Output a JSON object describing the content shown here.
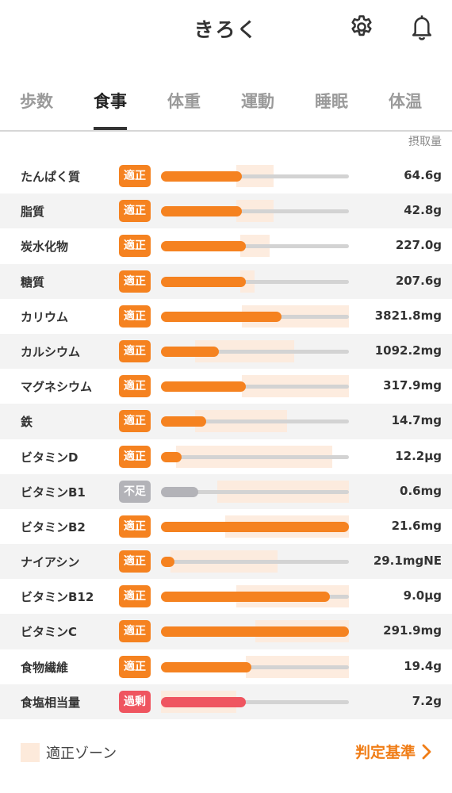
{
  "header": {
    "title": "きろく",
    "settings_icon": "gear-icon",
    "notification_icon": "bell-icon"
  },
  "tabs": [
    {
      "label": "歩数",
      "active": false
    },
    {
      "label": "食事",
      "active": true
    },
    {
      "label": "体重",
      "active": false
    },
    {
      "label": "運動",
      "active": false
    },
    {
      "label": "睡眠",
      "active": false
    },
    {
      "label": "体温",
      "active": false
    }
  ],
  "unit_header": "摂取量",
  "colors": {
    "accent": "#f07d16",
    "bar_orange": "#f58220",
    "shortage_gray": "#b3b3b8",
    "excess_red": "#ef5560",
    "zone": "#fdeadb",
    "track": "#d3d3d3"
  },
  "nutrients": [
    {
      "name": "たんぱく質",
      "status": "適正",
      "kind": "ok",
      "amount": "64.6g",
      "fill": 0.43,
      "zone": [
        0.4,
        0.6
      ]
    },
    {
      "name": "脂質",
      "status": "適正",
      "kind": "ok",
      "amount": "42.8g",
      "fill": 0.43,
      "zone": [
        0.4,
        0.6
      ]
    },
    {
      "name": "炭水化物",
      "status": "適正",
      "kind": "ok",
      "amount": "227.0g",
      "fill": 0.45,
      "zone": [
        0.42,
        0.58
      ]
    },
    {
      "name": "糖質",
      "status": "適正",
      "kind": "ok",
      "amount": "207.6g",
      "fill": 0.45,
      "zone": [
        0.42,
        0.5
      ]
    },
    {
      "name": "カリウム",
      "status": "適正",
      "kind": "ok",
      "amount": "3821.8mg",
      "fill": 0.64,
      "zone": [
        0.43,
        1.0
      ]
    },
    {
      "name": "カルシウム",
      "status": "適正",
      "kind": "ok",
      "amount": "1092.2mg",
      "fill": 0.31,
      "zone": [
        0.18,
        0.71
      ]
    },
    {
      "name": "マグネシウム",
      "status": "適正",
      "kind": "ok",
      "amount": "317.9mg",
      "fill": 0.45,
      "zone": [
        0.43,
        1.0
      ]
    },
    {
      "name": "鉄",
      "status": "適正",
      "kind": "ok",
      "amount": "14.7mg",
      "fill": 0.24,
      "zone": [
        0.18,
        0.67
      ]
    },
    {
      "name": "ビタミンD",
      "status": "適正",
      "kind": "ok",
      "amount": "12.2μg",
      "fill": 0.11,
      "zone": [
        0.08,
        0.91
      ]
    },
    {
      "name": "ビタミンB1",
      "status": "不足",
      "kind": "short",
      "amount": "0.6mg",
      "fill": 0.2,
      "zone": [
        0.3,
        1.0
      ]
    },
    {
      "name": "ビタミンB2",
      "status": "適正",
      "kind": "ok",
      "amount": "21.6mg",
      "fill": 1.0,
      "zone": [
        0.34,
        1.0
      ]
    },
    {
      "name": "ナイアシン",
      "status": "適正",
      "kind": "ok",
      "amount": "29.1mgNE",
      "fill": 0.07,
      "zone": [
        0.05,
        0.62
      ]
    },
    {
      "name": "ビタミンB12",
      "status": "適正",
      "kind": "ok",
      "amount": "9.0μg",
      "fill": 0.9,
      "zone": [
        0.4,
        1.0
      ]
    },
    {
      "name": "ビタミンC",
      "status": "適正",
      "kind": "ok",
      "amount": "291.9mg",
      "fill": 1.0,
      "zone": [
        0.5,
        1.0
      ]
    },
    {
      "name": "食物繊維",
      "status": "適正",
      "kind": "ok",
      "amount": "19.4g",
      "fill": 0.48,
      "zone": [
        0.45,
        1.0
      ]
    },
    {
      "name": "食塩相当量",
      "status": "過剰",
      "kind": "over",
      "amount": "7.2g",
      "fill": 0.45,
      "zone": [
        0.0,
        0.4
      ]
    }
  ],
  "legend": {
    "label": "適正ゾーン"
  },
  "criteria_link": {
    "label": "判定基準",
    "icon": "chevron-right-icon"
  }
}
